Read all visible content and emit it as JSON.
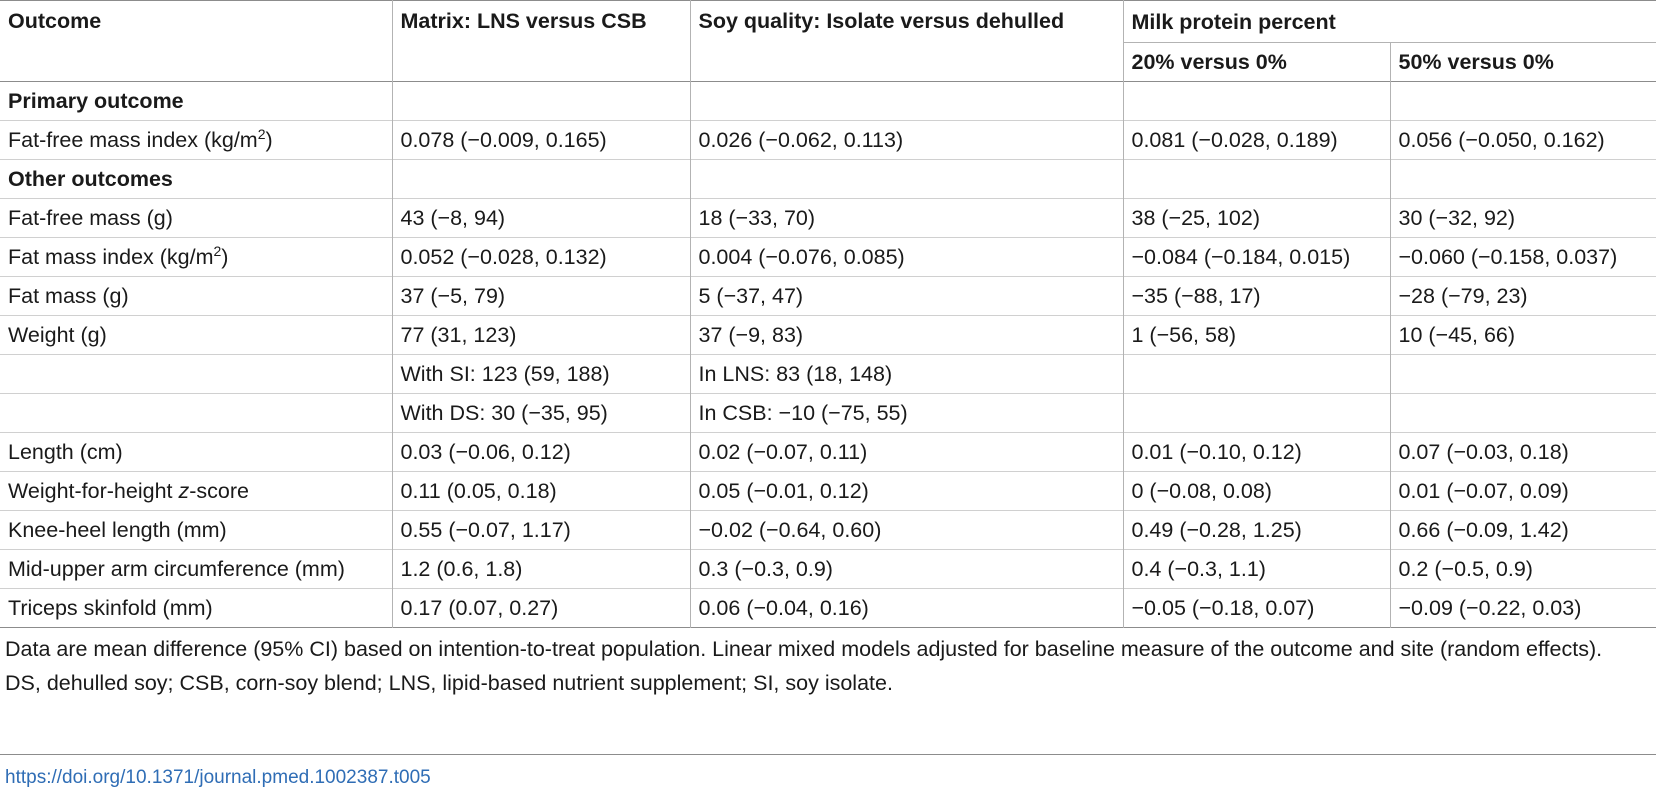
{
  "headers": {
    "outcome": "Outcome",
    "matrix": "Matrix: LNS versus CSB",
    "soy": "Soy quality: Isolate versus dehulled",
    "milk": "Milk protein percent",
    "milk20": "20% versus 0%",
    "milk50": "50% versus 0%"
  },
  "rows": [
    {
      "label": "Primary outcome"
    },
    {
      "pre": "Fat-free mass index (kg/m",
      "sup": "2",
      "post": ")",
      "c1": "0.078 (−0.009, 0.165)",
      "c2": "0.026 (−0.062, 0.113)",
      "c3": "0.081 (−0.028, 0.189)",
      "c4": "0.056 (−0.050, 0.162)"
    },
    {
      "label": "Other outcomes"
    },
    {
      "pre": "Fat-free mass (g)",
      "c1": "43 (−8, 94)",
      "c2": "18 (−33, 70)",
      "c3": "38 (−25, 102)",
      "c4": "30 (−32, 92)"
    },
    {
      "pre": "Fat mass index (kg/m",
      "sup": "2",
      "post": ")",
      "c1": "0.052 (−0.028, 0.132)",
      "c2": "0.004 (−0.076, 0.085)",
      "c3": "−0.084 (−0.184, 0.015)",
      "c4": "−0.060 (−0.158, 0.037)"
    },
    {
      "pre": "Fat mass (g)",
      "c1": "37 (−5, 79)",
      "c2": "5 (−37, 47)",
      "c3": "−35 (−88, 17)",
      "c4": "−28 (−79, 23)"
    },
    {
      "pre": "Weight (g)",
      "c1": "77 (31, 123)",
      "c2": "37 (−9, 83)",
      "c3": "1 (−56, 58)",
      "c4": "10 (−45, 66)"
    },
    {
      "pre": "",
      "c1": "With SI: 123 (59, 188)",
      "c2": "In LNS: 83 (18, 148)",
      "c3": "",
      "c4": ""
    },
    {
      "pre": "",
      "c1": "With DS: 30 (−35, 95)",
      "c2": "In CSB: −10 (−75, 55)",
      "c3": "",
      "c4": ""
    },
    {
      "pre": "Length (cm)",
      "c1": "0.03 (−0.06, 0.12)",
      "c2": "0.02 (−0.07, 0.11)",
      "c3": "0.01 (−0.10, 0.12)",
      "c4": "0.07 (−0.03, 0.18)"
    },
    {
      "pre": "Weight-for-height ",
      "ital": "z",
      "post": "-score",
      "c1": "0.11 (0.05, 0.18)",
      "c2": "0.05 (−0.01, 0.12)",
      "c3": "0 (−0.08, 0.08)",
      "c4": "0.01 (−0.07, 0.09)"
    },
    {
      "pre": "Knee-heel length (mm)",
      "c1": "0.55 (−0.07, 1.17)",
      "c2": "−0.02 (−0.64, 0.60)",
      "c3": "0.49 (−0.28, 1.25)",
      "c4": "0.66 (−0.09, 1.42)"
    },
    {
      "pre": "Mid-upper arm circumference (mm)",
      "c1": "1.2 (0.6, 1.8)",
      "c2": "0.3 (−0.3, 0.9)",
      "c3": "0.4 (−0.3, 1.1)",
      "c4": "0.2 (−0.5, 0.9)"
    },
    {
      "pre": "Triceps skinfold (mm)",
      "c1": "0.17 (0.07, 0.27)",
      "c2": "0.06 (−0.04, 0.16)",
      "c3": "−0.05 (−0.18, 0.07)",
      "c4": "−0.09 (−0.22, 0.03)"
    }
  ],
  "notes": [
    "Data are mean difference (95% CI) based on intention-to-treat population. Linear mixed models adjusted for baseline measure of the outcome and site (random effects).",
    "DS, dehulled soy; CSB, corn-soy blend; LNS, lipid-based nutrient supplement; SI, soy isolate."
  ],
  "doi": "https://doi.org/10.1371/journal.pmed.1002387.t005"
}
